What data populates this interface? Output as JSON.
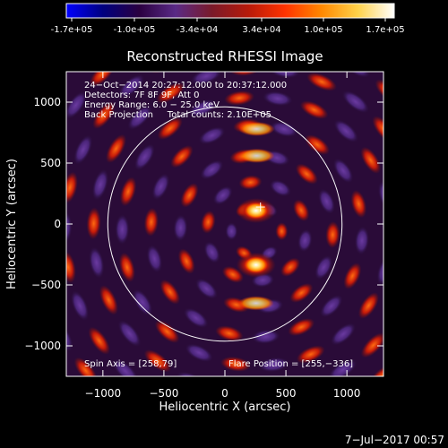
{
  "colorbar": {
    "tick_labels": [
      "-1.7e+05",
      "-1.0e+05",
      "-3.4e+04",
      "3.4e+04",
      "1.0e+05",
      "1.7e+05"
    ],
    "colors": [
      "#0000ff",
      "#000080",
      "#2a0040",
      "#5a2a86",
      "#7a1a2a",
      "#b81a0a",
      "#ff3300",
      "#ff8800",
      "#ffd24a",
      "#ffffff"
    ]
  },
  "plot": {
    "title": "Reconstructed RHESSI Image",
    "xlabel": "Heliocentric X (arcsec)",
    "ylabel": "Heliocentric Y (arcsec)",
    "xlim": [
      -1300,
      1300
    ],
    "ylim": [
      -1250,
      1250
    ],
    "xticks": [
      -1000,
      -500,
      0,
      500,
      1000
    ],
    "xtick_labels": [
      "−1000",
      "−500",
      "0",
      "500",
      "1000"
    ],
    "yticks": [
      -1000,
      -500,
      0,
      500,
      1000
    ],
    "ytick_labels": [
      "−1000",
      "−500",
      "0",
      "500",
      "1000"
    ],
    "solar_limb_radius_arcsec": 960,
    "info_lines": [
      "24−Oct−2014 20:27:12.000 to 20:37:12.000",
      "Detectors: 7F 8F 9F, Att 0",
      "Energy Range: 6.0 − 25.0 keV",
      "Back Projection     Total counts: 2.10E+05"
    ],
    "spin_axis_label": "Spin Axis = [258,79]",
    "flare_position_label": "Flare Position = [255,−336]",
    "sources": [
      {
        "x": 255,
        "y": 110,
        "strength": 1.0
      },
      {
        "x": 255,
        "y": -336,
        "strength": 1.0
      }
    ]
  },
  "footer": {
    "date_stamp": "7−Jul−2017 00:57"
  }
}
